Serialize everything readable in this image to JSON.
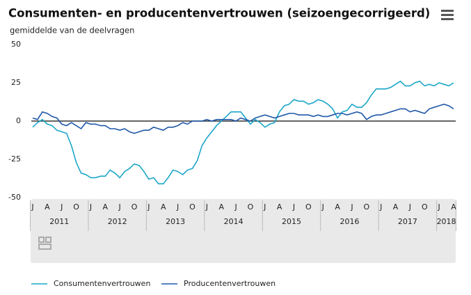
{
  "chart_data": {
    "type": "line",
    "title": "Consumenten- en producentenvertrouwen (seizoengecorrigeerd)",
    "subtitle": "gemiddelde van de deelvragen",
    "categories": [
      "J",
      null,
      null,
      "A",
      null,
      null,
      "J",
      null,
      null,
      "O",
      null,
      null,
      "J",
      null,
      null,
      "A",
      null,
      null,
      "J",
      null,
      null,
      "O",
      null,
      null,
      "J",
      null,
      null,
      "A",
      null,
      null,
      "J",
      null,
      null,
      "O",
      null,
      null,
      "J",
      null,
      null,
      "A",
      null,
      null,
      "J",
      null,
      null,
      "O",
      null,
      null,
      "J",
      null,
      null,
      "A",
      null,
      null,
      "J",
      null,
      null,
      "O",
      null,
      null,
      "J",
      null,
      null,
      "A",
      null,
      null,
      "J",
      null,
      null,
      "O",
      null,
      null,
      "J",
      null,
      null,
      "A",
      null,
      null,
      "J",
      null,
      null,
      "O",
      null,
      null,
      "J",
      null,
      null,
      "A"
    ],
    "years": [
      {
        "label": "2011",
        "months": 12
      },
      {
        "label": "2012",
        "months": 12
      },
      {
        "label": "2013",
        "months": 12
      },
      {
        "label": "2014",
        "months": 12
      },
      {
        "label": "2015",
        "months": 12
      },
      {
        "label": "2016",
        "months": 12
      },
      {
        "label": "2017",
        "months": 12
      },
      {
        "label": "2018",
        "months": 4
      }
    ],
    "series": [
      {
        "name": "Consumentenvertrouwen",
        "color": "#1aa6c8",
        "values": [
          -4,
          -1,
          1,
          -2,
          -3,
          -6,
          -7,
          -8,
          -16,
          -27,
          -34,
          -35,
          -37,
          -37,
          -36,
          -36,
          -32,
          -34,
          -37,
          -33,
          -31,
          -28,
          -29,
          -33,
          -38,
          -37,
          -41,
          -41,
          -37,
          -32,
          -33,
          -35,
          -32,
          -31,
          -26,
          -16,
          -11,
          -7,
          -3,
          0,
          3,
          6,
          6,
          6,
          2,
          -2,
          1,
          -1,
          -4,
          -2,
          -1,
          6,
          10,
          11,
          14,
          13,
          13,
          11,
          12,
          14,
          13,
          11,
          8,
          2,
          6,
          7,
          11,
          9,
          9,
          12,
          17,
          21,
          21,
          21,
          22,
          24,
          26,
          23,
          23,
          25,
          26,
          23,
          24,
          23,
          25,
          24,
          23,
          25
        ]
      },
      {
        "name": "Producentenvertrouwen",
        "color": "#1f58a8",
        "values": [
          2,
          1,
          6,
          5,
          3,
          2,
          -2,
          -3,
          -1,
          -3,
          -5,
          -1,
          -2,
          -2,
          -3,
          -3,
          -5,
          -5,
          -6,
          -5,
          -7,
          -8,
          -7,
          -6,
          -6,
          -4,
          -5,
          -6,
          -4,
          -4,
          -3,
          -1,
          -2,
          0,
          0,
          0,
          1,
          0,
          1,
          1,
          1,
          1,
          0,
          2,
          1,
          0,
          2,
          3,
          4,
          3,
          2,
          3,
          4,
          5,
          5,
          4,
          4,
          4,
          3,
          4,
          3,
          3,
          4,
          5,
          5,
          4,
          5,
          6,
          5,
          1,
          3,
          4,
          4,
          5,
          6,
          7,
          8,
          8,
          6,
          7,
          6,
          5,
          8,
          9,
          10,
          11,
          10,
          8
        ]
      }
    ],
    "ylim": [
      -50,
      50
    ],
    "yticks": [
      -50,
      -25,
      0,
      25,
      50
    ],
    "legend": "bottom"
  }
}
